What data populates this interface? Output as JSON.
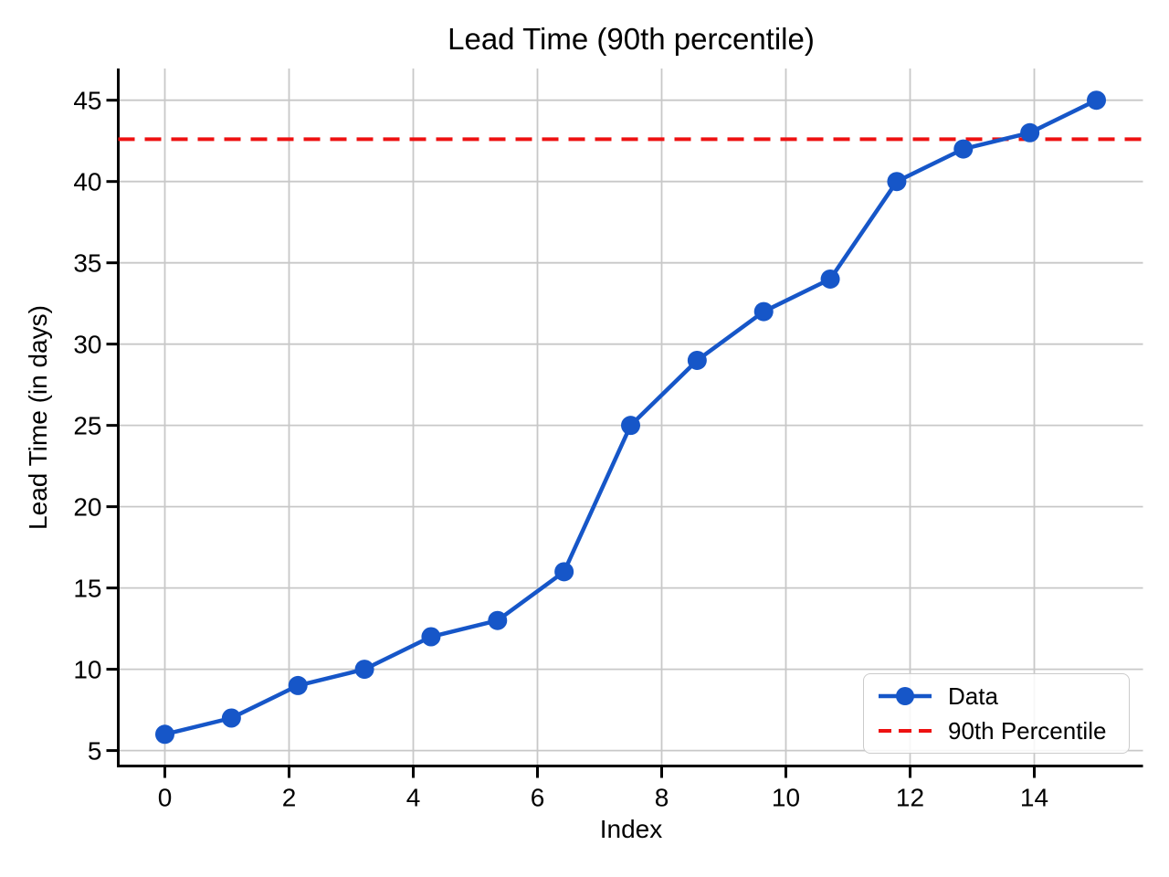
{
  "chart_data": {
    "type": "line",
    "title": "Lead Time (90th percentile)",
    "xlabel": "Index",
    "ylabel": "Lead Time (in days)",
    "x": [
      0,
      1.0714,
      2.1429,
      3.2143,
      4.2857,
      5.3571,
      6.4286,
      7.5,
      8.5714,
      9.6429,
      10.7143,
      11.7857,
      12.8571,
      13.9286,
      15
    ],
    "y": [
      6,
      7,
      9,
      10,
      12,
      13,
      16,
      25,
      29,
      32,
      34,
      40,
      42,
      43,
      45
    ],
    "percentile_value": 42.6,
    "xlim": [
      -0.75,
      15.75
    ],
    "ylim": [
      4.05,
      46.95
    ],
    "x_ticks": [
      0,
      2,
      4,
      6,
      8,
      10,
      12,
      14
    ],
    "x_tick_labels": [
      "0",
      "2",
      "4",
      "6",
      "8",
      "10",
      "12",
      "14"
    ],
    "y_ticks": [
      5,
      10,
      15,
      20,
      25,
      30,
      35,
      40,
      45
    ],
    "y_tick_labels": [
      "5",
      "10",
      "15",
      "20",
      "25",
      "30",
      "35",
      "40",
      "45"
    ],
    "grid": true,
    "legend": {
      "position": "lower right",
      "entries": [
        {
          "label": "Data",
          "style": "solid-line-with-marker"
        },
        {
          "label": "90th Percentile",
          "style": "dashed-line"
        }
      ]
    },
    "colors": {
      "line": "#1656C8",
      "percentile": "#EE1111",
      "grid": "#C8C8C8",
      "spine": "#000000",
      "background": "#FFFFFF"
    }
  }
}
